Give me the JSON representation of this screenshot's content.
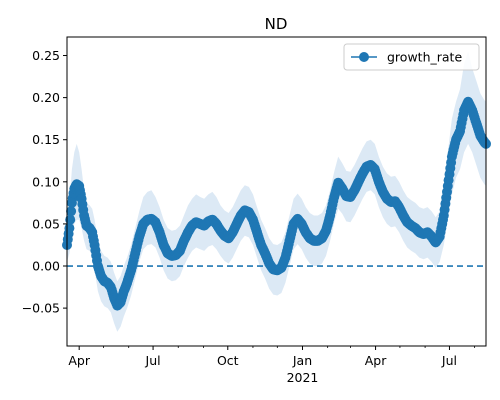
{
  "chart_data": {
    "type": "line",
    "title": "ND",
    "xlabel": "",
    "ylabel": "",
    "x_start": "2020-03-17",
    "x_end": "2021-08-15",
    "ylim": [
      -0.095,
      0.272
    ],
    "y_ticks": [
      -0.05,
      0.0,
      0.05,
      0.1,
      0.15,
      0.2,
      0.25
    ],
    "y_tick_labels": [
      "−0.05",
      "0.00",
      "0.05",
      "0.10",
      "0.15",
      "0.20",
      "0.25"
    ],
    "x_major_ticks": [
      {
        "date": "2020-04-01",
        "label": "Apr"
      },
      {
        "date": "2020-07-01",
        "label": "Jul"
      },
      {
        "date": "2020-10-01",
        "label": "Oct"
      },
      {
        "date": "2021-01-01",
        "label": "Jan"
      },
      {
        "date": "2021-04-01",
        "label": "Apr"
      },
      {
        "date": "2021-07-01",
        "label": "Jul"
      }
    ],
    "x_minor_ticks": [
      "2020-05-01",
      "2020-06-01",
      "2020-08-01",
      "2020-09-01",
      "2020-11-01",
      "2020-12-01",
      "2021-02-01",
      "2021-03-01",
      "2021-05-01",
      "2021-06-01",
      "2021-08-01"
    ],
    "year_label": {
      "date": "2021-01-01",
      "label": "2021"
    },
    "reference_line": {
      "y": 0.0,
      "style": "dashed"
    },
    "legend": {
      "position": "top-right",
      "entries": [
        "growth_rate"
      ]
    },
    "grid": false,
    "series": [
      {
        "name": "growth_rate",
        "color": "#1f77b4",
        "band_color": "#dce9f5",
        "points": [
          [
            "2020-03-17",
            0.025,
            0.005,
            0.045
          ],
          [
            "2020-03-20",
            0.045,
            0.015,
            0.075
          ],
          [
            "2020-03-23",
            0.075,
            0.035,
            0.115
          ],
          [
            "2020-03-26",
            0.092,
            0.05,
            0.135
          ],
          [
            "2020-03-29",
            0.097,
            0.055,
            0.145
          ],
          [
            "2020-04-01",
            0.095,
            0.055,
            0.135
          ],
          [
            "2020-04-04",
            0.08,
            0.045,
            0.115
          ],
          [
            "2020-04-07",
            0.06,
            0.03,
            0.09
          ],
          [
            "2020-04-10",
            0.048,
            0.02,
            0.075
          ],
          [
            "2020-04-14",
            0.045,
            0.018,
            0.072
          ],
          [
            "2020-04-17",
            0.04,
            0.012,
            0.068
          ],
          [
            "2020-04-20",
            0.025,
            -0.005,
            0.055
          ],
          [
            "2020-04-24",
            0.0,
            -0.03,
            0.03
          ],
          [
            "2020-04-28",
            -0.012,
            -0.042,
            0.018
          ],
          [
            "2020-05-02",
            -0.018,
            -0.048,
            0.012
          ],
          [
            "2020-05-06",
            -0.02,
            -0.05,
            0.01
          ],
          [
            "2020-05-10",
            -0.025,
            -0.055,
            0.005
          ],
          [
            "2020-05-14",
            -0.038,
            -0.068,
            -0.008
          ],
          [
            "2020-05-18",
            -0.047,
            -0.078,
            -0.018
          ],
          [
            "2020-05-22",
            -0.043,
            -0.072,
            -0.012
          ],
          [
            "2020-05-26",
            -0.03,
            -0.06,
            0.0
          ],
          [
            "2020-05-30",
            -0.02,
            -0.05,
            0.01
          ],
          [
            "2020-06-04",
            -0.005,
            -0.035,
            0.025
          ],
          [
            "2020-06-09",
            0.015,
            -0.015,
            0.045
          ],
          [
            "2020-06-14",
            0.035,
            0.005,
            0.065
          ],
          [
            "2020-06-19",
            0.05,
            0.02,
            0.082
          ],
          [
            "2020-06-24",
            0.055,
            0.025,
            0.088
          ],
          [
            "2020-06-29",
            0.056,
            0.026,
            0.09
          ],
          [
            "2020-07-04",
            0.052,
            0.022,
            0.082
          ],
          [
            "2020-07-09",
            0.04,
            0.01,
            0.07
          ],
          [
            "2020-07-14",
            0.025,
            -0.005,
            0.055
          ],
          [
            "2020-07-19",
            0.015,
            -0.015,
            0.045
          ],
          [
            "2020-07-24",
            0.012,
            -0.018,
            0.042
          ],
          [
            "2020-07-29",
            0.013,
            -0.017,
            0.043
          ],
          [
            "2020-08-03",
            0.018,
            -0.012,
            0.048
          ],
          [
            "2020-08-08",
            0.03,
            0.0,
            0.06
          ],
          [
            "2020-08-13",
            0.04,
            0.01,
            0.072
          ],
          [
            "2020-08-18",
            0.048,
            0.018,
            0.08
          ],
          [
            "2020-08-23",
            0.052,
            0.022,
            0.085
          ],
          [
            "2020-08-28",
            0.05,
            0.02,
            0.082
          ],
          [
            "2020-09-02",
            0.048,
            0.018,
            0.08
          ],
          [
            "2020-09-07",
            0.053,
            0.023,
            0.085
          ],
          [
            "2020-09-12",
            0.055,
            0.025,
            0.088
          ],
          [
            "2020-09-17",
            0.05,
            0.02,
            0.082
          ],
          [
            "2020-09-22",
            0.042,
            0.012,
            0.072
          ],
          [
            "2020-09-27",
            0.036,
            0.006,
            0.066
          ],
          [
            "2020-10-02",
            0.033,
            0.003,
            0.063
          ],
          [
            "2020-10-07",
            0.04,
            0.01,
            0.07
          ],
          [
            "2020-10-12",
            0.05,
            0.02,
            0.08
          ],
          [
            "2020-10-17",
            0.06,
            0.03,
            0.09
          ],
          [
            "2020-10-22",
            0.066,
            0.036,
            0.096
          ],
          [
            "2020-10-27",
            0.064,
            0.034,
            0.094
          ],
          [
            "2020-11-01",
            0.055,
            0.025,
            0.085
          ],
          [
            "2020-11-06",
            0.04,
            0.01,
            0.07
          ],
          [
            "2020-11-11",
            0.025,
            -0.005,
            0.055
          ],
          [
            "2020-11-16",
            0.015,
            -0.015,
            0.045
          ],
          [
            "2020-11-21",
            0.003,
            -0.027,
            0.033
          ],
          [
            "2020-11-26",
            -0.004,
            -0.034,
            0.026
          ],
          [
            "2020-12-01",
            -0.005,
            -0.035,
            0.025
          ],
          [
            "2020-12-06",
            -0.002,
            -0.032,
            0.028
          ],
          [
            "2020-12-11",
            0.01,
            -0.02,
            0.04
          ],
          [
            "2020-12-16",
            0.03,
            0.0,
            0.06
          ],
          [
            "2020-12-21",
            0.05,
            0.02,
            0.08
          ],
          [
            "2020-12-26",
            0.056,
            0.026,
            0.086
          ],
          [
            "2020-12-31",
            0.05,
            0.02,
            0.08
          ],
          [
            "2021-01-05",
            0.04,
            0.01,
            0.07
          ],
          [
            "2021-01-10",
            0.033,
            0.003,
            0.063
          ],
          [
            "2021-01-15",
            0.03,
            0.0,
            0.06
          ],
          [
            "2021-01-20",
            0.03,
            0.0,
            0.06
          ],
          [
            "2021-01-25",
            0.033,
            0.003,
            0.063
          ],
          [
            "2021-01-30",
            0.042,
            0.012,
            0.072
          ],
          [
            "2021-02-04",
            0.06,
            0.03,
            0.09
          ],
          [
            "2021-02-09",
            0.082,
            0.052,
            0.112
          ],
          [
            "2021-02-14",
            0.099,
            0.068,
            0.13
          ],
          [
            "2021-02-19",
            0.092,
            0.062,
            0.122
          ],
          [
            "2021-02-24",
            0.083,
            0.053,
            0.113
          ],
          [
            "2021-03-01",
            0.082,
            0.052,
            0.112
          ],
          [
            "2021-03-06",
            0.09,
            0.06,
            0.12
          ],
          [
            "2021-03-11",
            0.1,
            0.07,
            0.13
          ],
          [
            "2021-03-16",
            0.11,
            0.08,
            0.14
          ],
          [
            "2021-03-21",
            0.118,
            0.088,
            0.148
          ],
          [
            "2021-03-26",
            0.12,
            0.09,
            0.15
          ],
          [
            "2021-03-31",
            0.115,
            0.085,
            0.145
          ],
          [
            "2021-04-05",
            0.1,
            0.07,
            0.13
          ],
          [
            "2021-04-10",
            0.088,
            0.058,
            0.118
          ],
          [
            "2021-04-15",
            0.08,
            0.05,
            0.11
          ],
          [
            "2021-04-20",
            0.076,
            0.046,
            0.106
          ],
          [
            "2021-04-25",
            0.077,
            0.047,
            0.107
          ],
          [
            "2021-04-30",
            0.07,
            0.04,
            0.1
          ],
          [
            "2021-05-05",
            0.06,
            0.03,
            0.09
          ],
          [
            "2021-05-10",
            0.052,
            0.022,
            0.082
          ],
          [
            "2021-05-15",
            0.048,
            0.018,
            0.078
          ],
          [
            "2021-05-20",
            0.045,
            0.015,
            0.075
          ],
          [
            "2021-05-25",
            0.04,
            0.01,
            0.07
          ],
          [
            "2021-05-30",
            0.038,
            0.008,
            0.068
          ],
          [
            "2021-06-04",
            0.04,
            0.01,
            0.07
          ],
          [
            "2021-06-09",
            0.035,
            0.005,
            0.065
          ],
          [
            "2021-06-14",
            0.028,
            -0.002,
            0.058
          ],
          [
            "2021-06-19",
            0.035,
            0.005,
            0.065
          ],
          [
            "2021-06-24",
            0.06,
            0.025,
            0.095
          ],
          [
            "2021-06-29",
            0.095,
            0.055,
            0.135
          ],
          [
            "2021-07-04",
            0.13,
            0.085,
            0.175
          ],
          [
            "2021-07-09",
            0.15,
            0.105,
            0.195
          ],
          [
            "2021-07-14",
            0.16,
            0.115,
            0.21
          ],
          [
            "2021-07-19",
            0.185,
            0.135,
            0.24
          ],
          [
            "2021-07-24",
            0.195,
            0.145,
            0.255
          ],
          [
            "2021-07-29",
            0.185,
            0.135,
            0.235
          ],
          [
            "2021-08-03",
            0.17,
            0.12,
            0.22
          ],
          [
            "2021-08-08",
            0.155,
            0.105,
            0.205
          ],
          [
            "2021-08-13",
            0.147,
            0.097,
            0.197
          ],
          [
            "2021-08-15",
            0.145,
            0.095,
            0.195
          ]
        ]
      }
    ]
  }
}
